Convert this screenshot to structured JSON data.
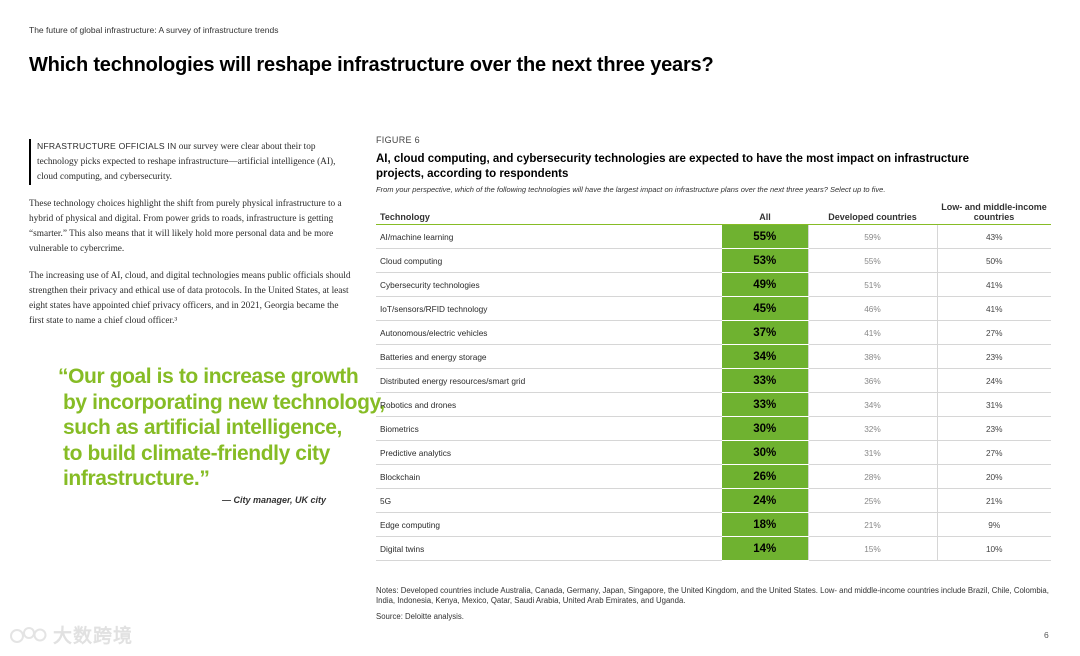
{
  "header": {
    "runner": "The future of global infrastructure: A survey of infrastructure trends",
    "title": "Which technologies will reshape infrastructure over the next three years?"
  },
  "intro": {
    "p1_lead": "NFRASTRUCTURE OFFICIALS IN",
    "p1_rest": " our survey were clear about their top technology picks expected to reshape infrastructure—artificial intelligence (AI), cloud computing, and cybersecurity.",
    "p2": "These technology choices highlight the shift from purely physical infrastructure to a hybrid of physical and digital. From power grids to roads, infrastructure is getting “smarter.” This also means that it will likely hold more personal data and be more vulnerable to cybercrime.",
    "p3": "The increasing use of AI, cloud, and digital technologies means public officials should strengthen their privacy and ethical use of data protocols. In the United States, at least eight states have appointed chief privacy officers, and in 2021, Georgia became the first state to name a chief cloud officer.³"
  },
  "quote": {
    "lines": [
      "“Our goal is to increase growth",
      "by incorporating new technology,",
      "such as artificial intelligence,",
      "to build climate-friendly city",
      "infrastructure.”"
    ],
    "attribution": "— City manager, UK city"
  },
  "figure": {
    "label": "FIGURE 6",
    "title": "AI, cloud computing, and cybersecurity technologies are expected to have the most impact on infrastructure projects, according to respondents",
    "subtitle": "From your perspective, which of the following technologies will have the largest impact on infrastructure plans over the next three years? Select up to five.",
    "columns": {
      "technology": "Technology",
      "all": "All",
      "developed": "Developed countries",
      "low_middle": "Low- and middle-income countries"
    },
    "rows": [
      {
        "tech": "AI/machine learning",
        "all": "55%",
        "dev": "59%",
        "low": "43%"
      },
      {
        "tech": "Cloud computing",
        "all": "53%",
        "dev": "55%",
        "low": "50%"
      },
      {
        "tech": "Cybersecurity technologies",
        "all": "49%",
        "dev": "51%",
        "low": "41%"
      },
      {
        "tech": "IoT/sensors/RFID technology",
        "all": "45%",
        "dev": "46%",
        "low": "41%"
      },
      {
        "tech": "Autonomous/electric vehicles",
        "all": "37%",
        "dev": "41%",
        "low": "27%"
      },
      {
        "tech": "Batteries and energy storage",
        "all": "34%",
        "dev": "38%",
        "low": "23%"
      },
      {
        "tech": "Distributed energy resources/smart grid",
        "all": "33%",
        "dev": "36%",
        "low": "24%"
      },
      {
        "tech": "Robotics and drones",
        "all": "33%",
        "dev": "34%",
        "low": "31%"
      },
      {
        "tech": "Biometrics",
        "all": "30%",
        "dev": "32%",
        "low": "23%"
      },
      {
        "tech": "Predictive analytics",
        "all": "30%",
        "dev": "31%",
        "low": "27%"
      },
      {
        "tech": "Blockchain",
        "all": "26%",
        "dev": "28%",
        "low": "20%"
      },
      {
        "tech": "5G",
        "all": "24%",
        "dev": "25%",
        "low": "21%"
      },
      {
        "tech": "Edge computing",
        "all": "18%",
        "dev": "21%",
        "low": "9%"
      },
      {
        "tech": "Digital twins",
        "all": "14%",
        "dev": "15%",
        "low": "10%"
      }
    ],
    "notes": "Notes: Developed countries include Australia, Canada, Germany, Japan, Singapore, the United Kingdom, and the United States. Low- and middle-income countries include Brazil, Chile, Colombia, India, Indonesia, Kenya, Mexico, Qatar, Saudi Arabia, United Arab Emirates, and Uganda.",
    "source": "Source: Deloitte analysis."
  },
  "footer": {
    "page_number": "6",
    "watermark_text": "大数跨境"
  },
  "colors": {
    "accent_green": "#86bc25",
    "cell_green": "#6fb230"
  }
}
